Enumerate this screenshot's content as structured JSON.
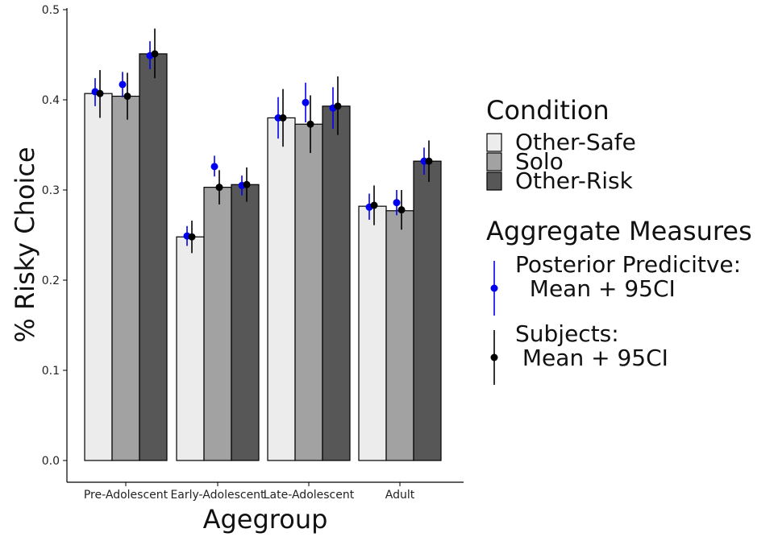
{
  "chart_data": {
    "type": "bar",
    "title": "",
    "xlabel": "Agegroup",
    "ylabel": "% Risky Choice",
    "ylim": [
      0,
      0.5
    ],
    "yticks": [
      "0.0",
      "0.1",
      "0.2",
      "0.3",
      "0.4",
      "0.5"
    ],
    "categories": [
      "Pre-Adolescent",
      "Early-Adolescent",
      "Late-Adolescent",
      "Adult"
    ],
    "grid": false,
    "legend_position": "right",
    "series": [
      {
        "name": "Other-Safe",
        "color": "#ececec",
        "values": [
          0.407,
          0.248,
          0.38,
          0.282
        ]
      },
      {
        "name": "Solo",
        "color": "#a2a2a2",
        "values": [
          0.404,
          0.303,
          0.373,
          0.277
        ]
      },
      {
        "name": "Other-Risk",
        "color": "#575757",
        "values": [
          0.451,
          0.306,
          0.393,
          0.332
        ]
      }
    ],
    "aggregate_measures": [
      {
        "name": "Posterior Predicitve:",
        "name_line2": "  Mean + 95CI",
        "color": "#0000ee",
        "points": [
          [
            {
              "mean": 0.409,
              "low": 0.393,
              "high": 0.424
            },
            {
              "mean": 0.417,
              "low": 0.403,
              "high": 0.431
            },
            {
              "mean": 0.449,
              "low": 0.434,
              "high": 0.465
            }
          ],
          [
            {
              "mean": 0.249,
              "low": 0.238,
              "high": 0.26
            },
            {
              "mean": 0.326,
              "low": 0.315,
              "high": 0.338
            },
            {
              "mean": 0.305,
              "low": 0.294,
              "high": 0.316
            }
          ],
          [
            {
              "mean": 0.38,
              "low": 0.357,
              "high": 0.403
            },
            {
              "mean": 0.397,
              "low": 0.375,
              "high": 0.419
            },
            {
              "mean": 0.391,
              "low": 0.368,
              "high": 0.414
            }
          ],
          [
            {
              "mean": 0.281,
              "low": 0.267,
              "high": 0.296
            },
            {
              "mean": 0.286,
              "low": 0.272,
              "high": 0.3
            },
            {
              "mean": 0.332,
              "low": 0.317,
              "high": 0.347
            }
          ]
        ]
      },
      {
        "name": "Subjects:",
        "name_line2": " Mean + 95CI",
        "color": "#000000",
        "points": [
          [
            {
              "mean": 0.407,
              "low": 0.38,
              "high": 0.433
            },
            {
              "mean": 0.404,
              "low": 0.378,
              "high": 0.43
            },
            {
              "mean": 0.451,
              "low": 0.424,
              "high": 0.479
            }
          ],
          [
            {
              "mean": 0.248,
              "low": 0.23,
              "high": 0.266
            },
            {
              "mean": 0.303,
              "low": 0.284,
              "high": 0.322
            },
            {
              "mean": 0.306,
              "low": 0.287,
              "high": 0.325
            }
          ],
          [
            {
              "mean": 0.38,
              "low": 0.348,
              "high": 0.412
            },
            {
              "mean": 0.373,
              "low": 0.341,
              "high": 0.405
            },
            {
              "mean": 0.393,
              "low": 0.361,
              "high": 0.426
            }
          ],
          [
            {
              "mean": 0.283,
              "low": 0.261,
              "high": 0.305
            },
            {
              "mean": 0.278,
              "low": 0.256,
              "high": 0.3
            },
            {
              "mean": 0.332,
              "low": 0.309,
              "high": 0.355
            }
          ]
        ]
      }
    ],
    "legend": {
      "condition_title": "Condition",
      "aggregate_title": "Aggregate Measures"
    }
  }
}
